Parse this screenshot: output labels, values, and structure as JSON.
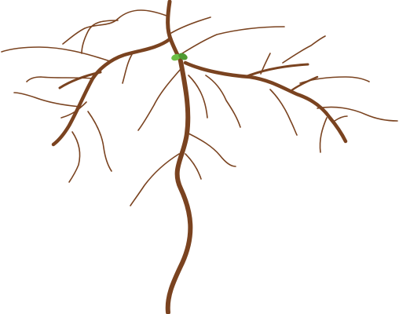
{
  "image": {
    "subject": "",
    "colors": {
      "background": "#ffffff",
      "root": "#7a4320",
      "sprout": "#6cbf45",
      "sprout_dark": "#4f9a32"
    }
  }
}
